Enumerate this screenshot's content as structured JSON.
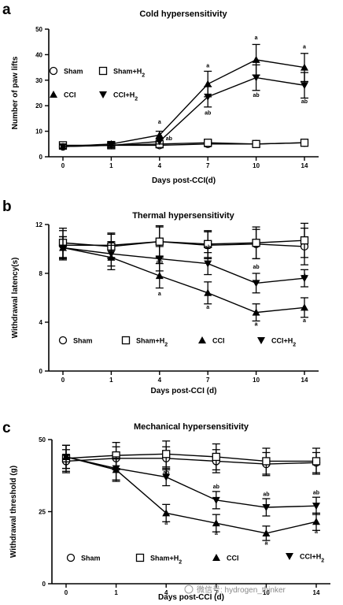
{
  "chart_data": [
    {
      "panel": "a",
      "type": "line",
      "title": "Cold hypersensitivity",
      "xlabel": "Days post-CCI(d)",
      "ylabel": "Number of paw lifts",
      "x": [
        0,
        1,
        4,
        7,
        10,
        14
      ],
      "ylim": [
        0,
        50
      ],
      "yticks": [
        0,
        10,
        20,
        30,
        40,
        50
      ],
      "grid": false,
      "legend_position": "upper-left",
      "series": [
        {
          "name": "Sham",
          "marker": "circle-open",
          "values": [
            4,
            4.5,
            4.5,
            5,
            5,
            5.5
          ],
          "errors": [
            1,
            1,
            1,
            1,
            1,
            1
          ]
        },
        {
          "name": "Sham+H2",
          "marker": "square-open",
          "values": [
            4.5,
            4.5,
            5,
            5.5,
            5,
            5.5
          ],
          "errors": [
            1,
            1,
            1,
            1,
            1,
            1
          ]
        },
        {
          "name": "CCI",
          "marker": "triangle-up-filled",
          "values": [
            4,
            5,
            8.5,
            28.5,
            38,
            35
          ],
          "errors": [
            1,
            1,
            1.5,
            5,
            6,
            5.5
          ]
        },
        {
          "name": "CCI+H2",
          "marker": "triangle-down-filled",
          "values": [
            4,
            4.5,
            6,
            23.5,
            31,
            28
          ],
          "errors": [
            1,
            1,
            1,
            4,
            5,
            5
          ]
        }
      ],
      "annotations": [
        {
          "x": 4,
          "y": 13,
          "text": "a"
        },
        {
          "x": 4,
          "y": 6.5,
          "text": "ab"
        },
        {
          "x": 7,
          "y": 35,
          "text": "a"
        },
        {
          "x": 7,
          "y": 16.5,
          "text": "ab"
        },
        {
          "x": 10,
          "y": 46,
          "text": "a"
        },
        {
          "x": 10,
          "y": 23.5,
          "text": "ab"
        },
        {
          "x": 14,
          "y": 42.5,
          "text": "a"
        },
        {
          "x": 14,
          "y": 21,
          "text": "ab"
        }
      ]
    },
    {
      "panel": "b",
      "type": "line",
      "title": "Thermal hypersensitivity",
      "xlabel": "Days post-CCI (d)",
      "ylabel": "Withdrawal latency(s)",
      "x": [
        0,
        1,
        4,
        7,
        10,
        14
      ],
      "ylim": [
        0,
        12
      ],
      "yticks": [
        0,
        4,
        8,
        12
      ],
      "grid": false,
      "legend_position": "bottom",
      "series": [
        {
          "name": "Sham",
          "marker": "circle-open",
          "values": [
            10.3,
            10.3,
            10.6,
            10.3,
            10.4,
            10.2
          ],
          "errors": [
            1.2,
            1,
            1.3,
            1.1,
            1.2,
            1.5
          ]
        },
        {
          "name": "Sham+H2",
          "marker": "square-open",
          "values": [
            10.5,
            10.2,
            10.6,
            10.4,
            10.5,
            10.7
          ],
          "errors": [
            1.2,
            1,
            1.2,
            1.1,
            1.3,
            1.4
          ]
        },
        {
          "name": "CCI",
          "marker": "triangle-up-filled",
          "values": [
            10.1,
            9.3,
            7.8,
            6.4,
            4.8,
            5.2
          ],
          "errors": [
            0.9,
            1,
            1,
            0.9,
            0.7,
            0.8
          ]
        },
        {
          "name": "CCI+H2",
          "marker": "triangle-down-filled",
          "values": [
            10.1,
            9.6,
            9.2,
            8.8,
            7.2,
            7.6
          ],
          "errors": [
            0.9,
            1,
            1,
            0.9,
            0.8,
            0.7
          ]
        }
      ],
      "annotations": [
        {
          "x": 4,
          "y": 8.8,
          "text": "ab"
        },
        {
          "x": 4,
          "y": 6.2,
          "text": "a"
        },
        {
          "x": 7,
          "y": 10,
          "text": "ab"
        },
        {
          "x": 7,
          "y": 5.1,
          "text": "a"
        },
        {
          "x": 10,
          "y": 8.4,
          "text": "ab"
        },
        {
          "x": 10,
          "y": 3.7,
          "text": "a"
        },
        {
          "x": 14,
          "y": 7.6,
          "text": "ab"
        },
        {
          "x": 14,
          "y": 4,
          "text": "a"
        }
      ]
    },
    {
      "panel": "c",
      "type": "line",
      "title": "Mechanical hypersensitivity",
      "xlabel": "Days post-CCI (d)",
      "ylabel": "Withdrawal threshold (g)",
      "x": [
        0,
        1,
        4,
        7,
        10,
        14
      ],
      "ylim": [
        0,
        50
      ],
      "yticks": [
        0,
        25,
        50
      ],
      "grid": false,
      "legend_position": "bottom",
      "series": [
        {
          "name": "Sham",
          "marker": "circle-open",
          "values": [
            42.5,
            43.5,
            43.5,
            42.5,
            41.5,
            42
          ],
          "errors": [
            4,
            4,
            4,
            4,
            4,
            3.5
          ]
        },
        {
          "name": "Sham+H2",
          "marker": "square-open",
          "values": [
            43.5,
            44.5,
            45,
            44,
            42.5,
            42.5
          ],
          "errors": [
            4.5,
            4.5,
            4.5,
            4.5,
            4.5,
            4.5
          ]
        },
        {
          "name": "CCI",
          "marker": "triangle-up-filled",
          "values": [
            44,
            39.5,
            24.5,
            21,
            17.5,
            21.5
          ],
          "errors": [
            4,
            4,
            3,
            3,
            2.5,
            3
          ]
        },
        {
          "name": "CCI+H2",
          "marker": "triangle-down-filled",
          "values": [
            44,
            40,
            37,
            29,
            26.5,
            27
          ],
          "errors": [
            4,
            4,
            3,
            3,
            3,
            3
          ]
        }
      ],
      "annotations": [
        {
          "x": 4,
          "y": 38,
          "text": "ab"
        },
        {
          "x": 4,
          "y": 20.5,
          "text": "a"
        },
        {
          "x": 7,
          "y": 33,
          "text": "ab"
        },
        {
          "x": 7,
          "y": 17,
          "text": "a"
        },
        {
          "x": 10,
          "y": 30.5,
          "text": "ab"
        },
        {
          "x": 10,
          "y": 13.5,
          "text": "a"
        },
        {
          "x": 14,
          "y": 31,
          "text": "ab"
        },
        {
          "x": 14,
          "y": 17.5,
          "text": "a"
        }
      ]
    }
  ],
  "watermark": "微信号: hydrogen_thinker"
}
